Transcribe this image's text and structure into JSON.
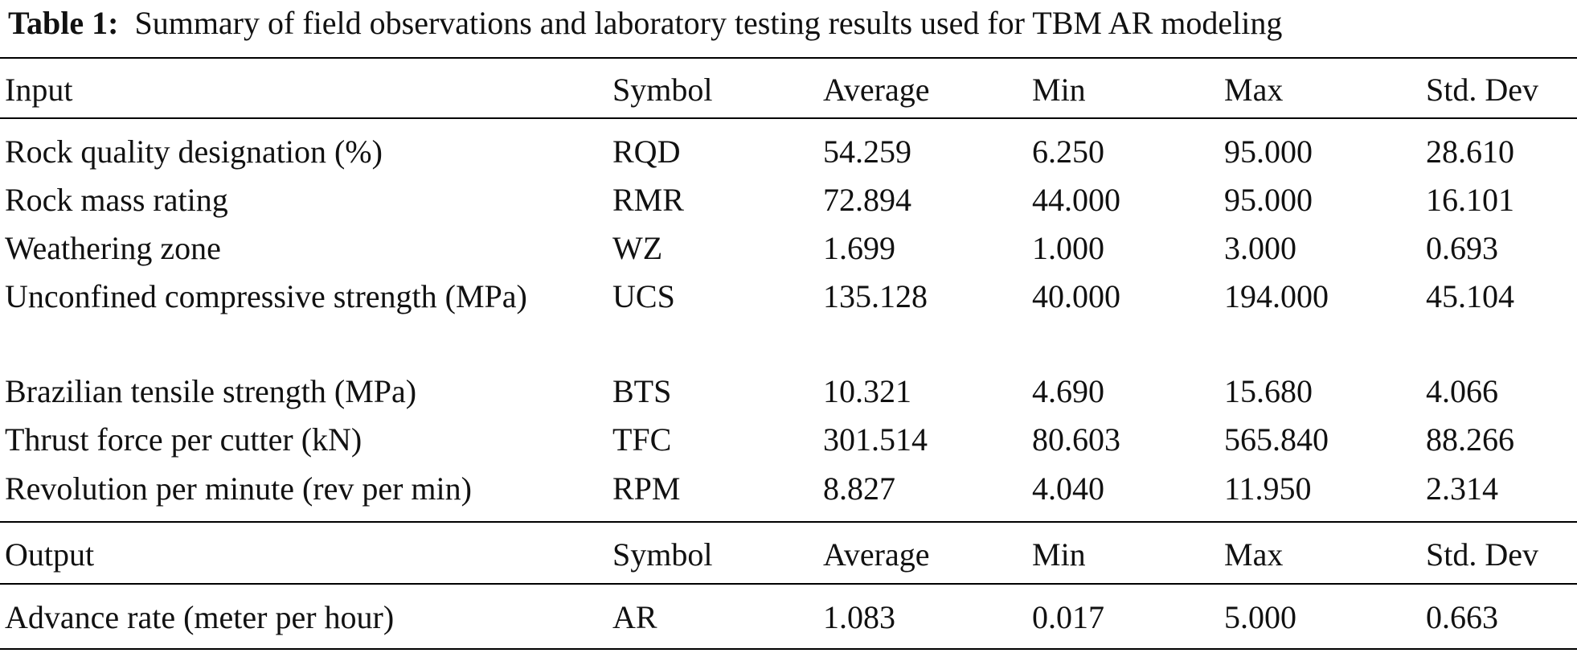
{
  "caption": {
    "label": "Table 1:",
    "text": "Summary of field observations and laboratory testing results used for TBM AR modeling"
  },
  "input_header": [
    "Input",
    "Symbol",
    "Average",
    "Min",
    "Max",
    "Std. Dev"
  ],
  "input_rows": [
    [
      "Rock quality designation (%)",
      "RQD",
      "54.259",
      "6.250",
      "95.000",
      "28.610"
    ],
    [
      "Rock mass rating",
      "RMR",
      "72.894",
      "44.000",
      "95.000",
      "16.101"
    ],
    [
      "Weathering zone",
      "WZ",
      "1.699",
      "1.000",
      "3.000",
      "0.693"
    ],
    [
      "Unconfined compressive strength (MPa)",
      "UCS",
      "135.128",
      "40.000",
      "194.000",
      "45.104"
    ],
    [
      "Brazilian tensile strength (MPa)",
      "BTS",
      "10.321",
      "4.690",
      "15.680",
      "4.066"
    ],
    [
      "Thrust force per cutter (kN)",
      "TFC",
      "301.514",
      "80.603",
      "565.840",
      "88.266"
    ],
    [
      "Revolution per minute (rev per min)",
      "RPM",
      "8.827",
      "4.040",
      "11.950",
      "2.314"
    ]
  ],
  "output_header": [
    "Output",
    "Symbol",
    "Average",
    "Min",
    "Max",
    "Std. Dev"
  ],
  "output_rows": [
    [
      "Advance rate (meter per hour)",
      "AR",
      "1.083",
      "0.017",
      "5.000",
      "0.663"
    ]
  ]
}
